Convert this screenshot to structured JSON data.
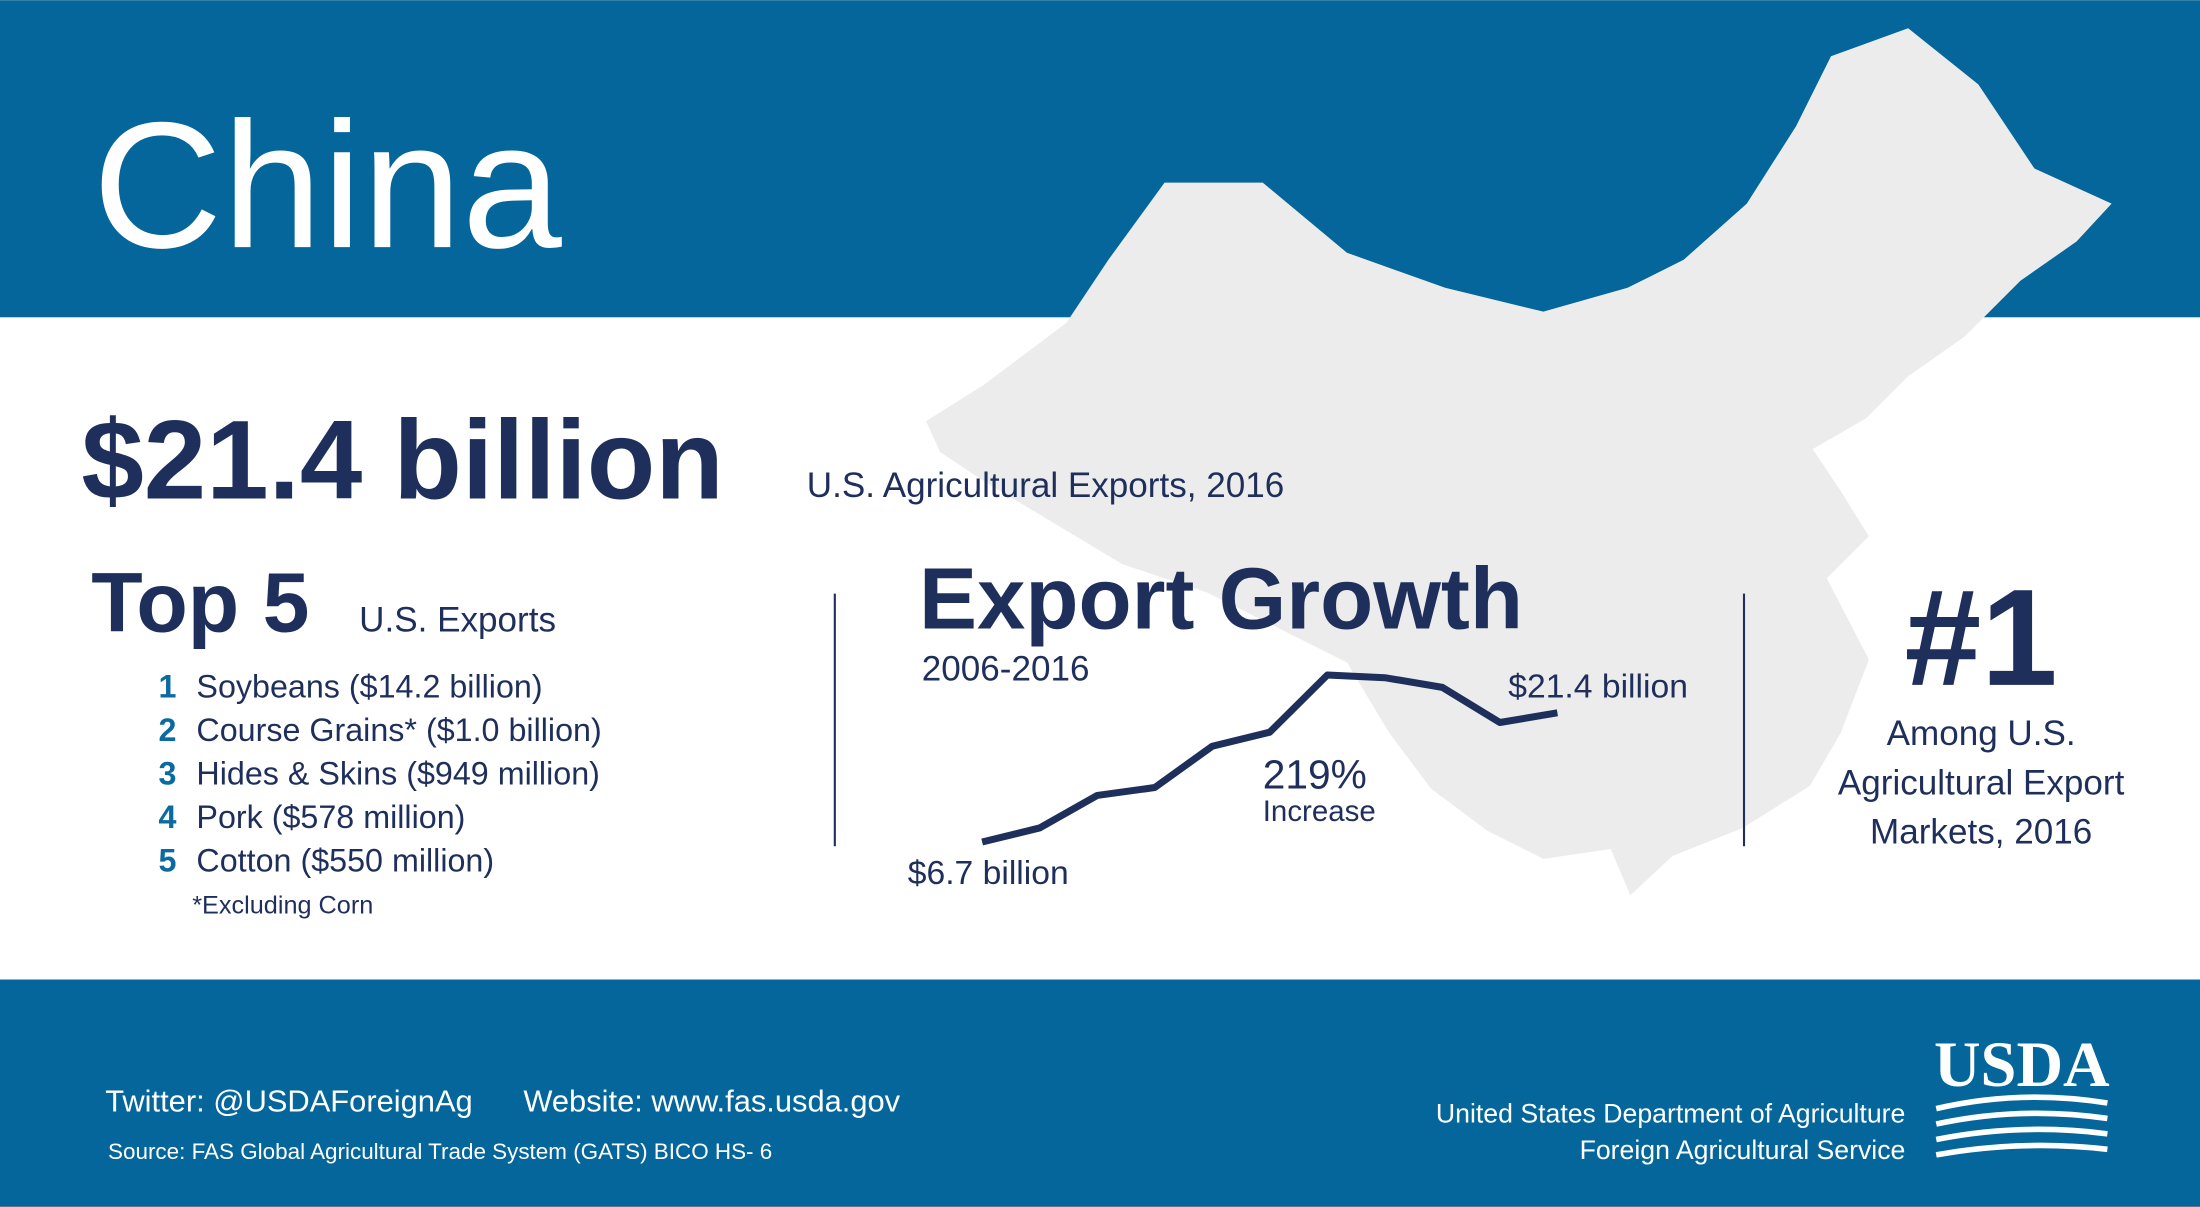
{
  "header": {
    "title": "China"
  },
  "headline": {
    "value": "$21.4 billion",
    "caption": "U.S. Agricultural Exports, 2016"
  },
  "top_exports": {
    "title": "Top 5",
    "subtitle": "U.S. Exports",
    "items": [
      {
        "rank": 1,
        "label": "Soybeans ($14.2 billion)"
      },
      {
        "rank": 2,
        "label": "Course Grains* ($1.0 billion)"
      },
      {
        "rank": 3,
        "label": "Hides & Skins ($949 million)"
      },
      {
        "rank": 4,
        "label": "Pork ($578 million)"
      },
      {
        "rank": 5,
        "label": "Cotton ($550 million)"
      }
    ],
    "note": "*Excluding Corn"
  },
  "chart_data": {
    "type": "line",
    "title": "Export Growth",
    "subtitle": "2006-2016",
    "categories": [
      null,
      null,
      null,
      null,
      null,
      null,
      null,
      null,
      null,
      null,
      null
    ],
    "values": [
      6.7,
      8.3,
      12.0,
      12.9,
      17.6,
      19.2,
      25.7,
      25.4,
      24.3,
      20.3,
      21.4
    ],
    "value_labels": [
      "$6.7 billion",
      null,
      null,
      null,
      null,
      null,
      null,
      null,
      null,
      null,
      "$21.4 billion"
    ],
    "color": "#1f2f5c",
    "annotations": [
      "219%",
      "Increase"
    ]
  },
  "ranking": {
    "title": "#1",
    "lines": [
      "Among U.S.",
      "Agricultural Export",
      "Markets, 2016"
    ]
  },
  "footer": {
    "twitter": "Twitter: @USDAForeignAg",
    "website": "Website: www.fas.usda.gov",
    "source": "Source: FAS Global Agricultural Trade System (GATS) BICO HS- 6",
    "org": [
      "United States Department of Agriculture",
      "Foreign Agricultural Service"
    ],
    "logo": "USDA"
  }
}
